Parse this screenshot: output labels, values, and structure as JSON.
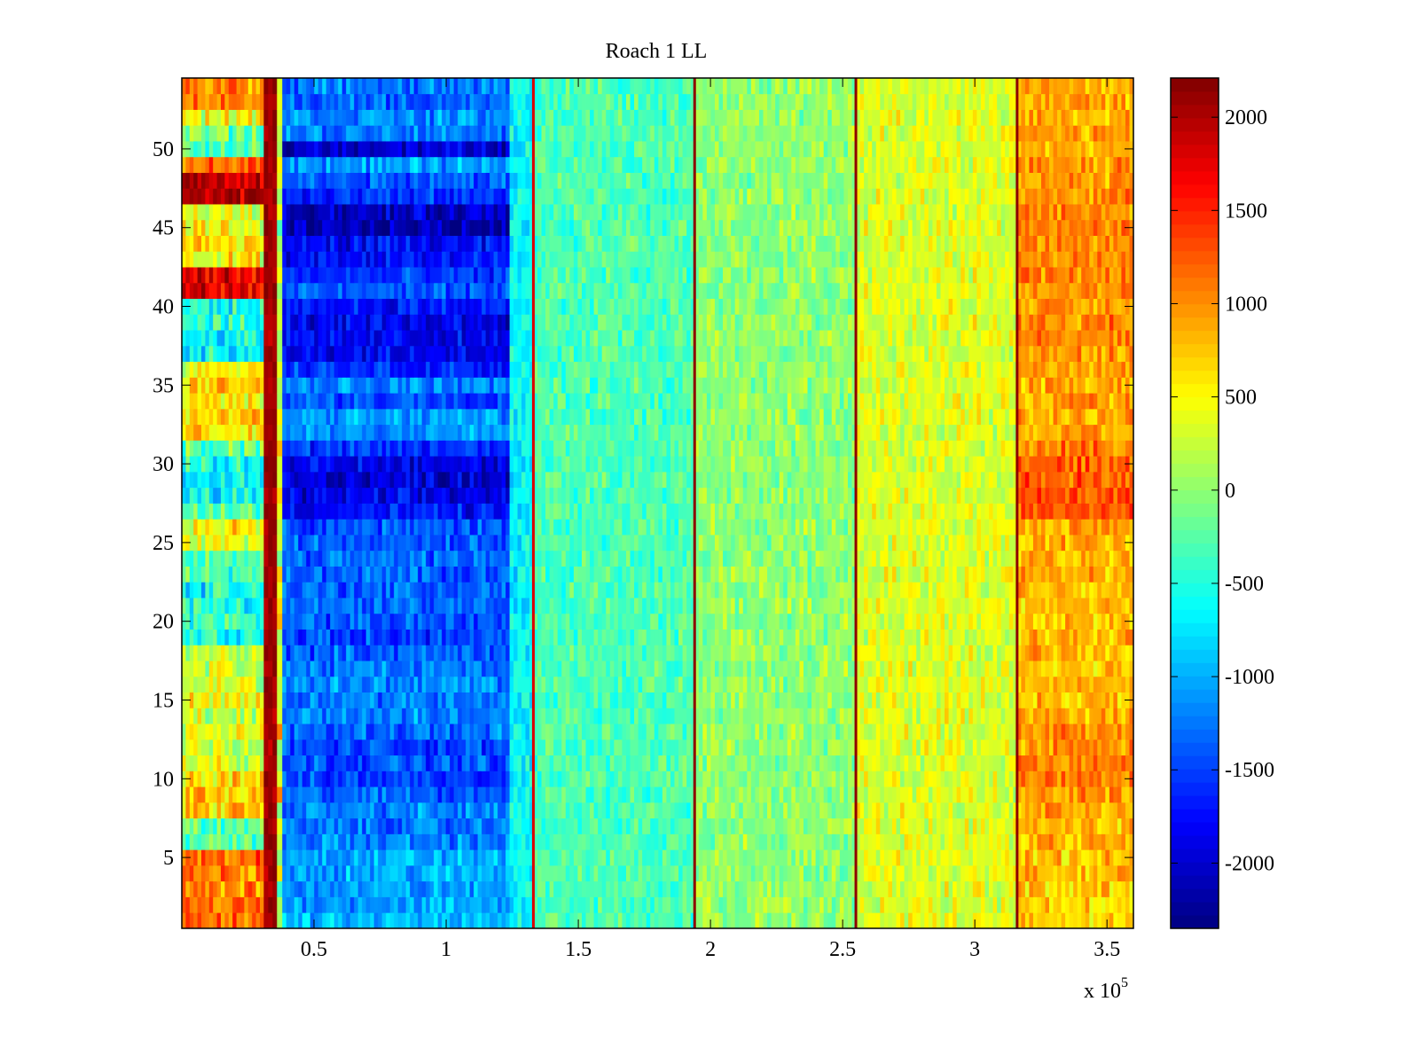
{
  "chart_data": {
    "type": "heatmap",
    "title": "Roach 1 LL",
    "xlabel": "",
    "ylabel": "",
    "x_multiplier_label": "x 10",
    "x_multiplier_exponent": "5",
    "xlim": [
      0,
      360000
    ],
    "ylim": [
      0.5,
      54.5
    ],
    "rows": 54,
    "xticks": [
      50000,
      100000,
      150000,
      200000,
      250000,
      300000,
      350000
    ],
    "xtick_labels": [
      "0.5",
      "1",
      "1.5",
      "2",
      "2.5",
      "3",
      "3.5"
    ],
    "yticks": [
      5,
      10,
      15,
      20,
      25,
      30,
      35,
      40,
      45,
      50
    ],
    "ytick_labels": [
      "5",
      "10",
      "15",
      "20",
      "25",
      "30",
      "35",
      "40",
      "45",
      "50"
    ],
    "colormap": "jet",
    "clim": [
      -2350,
      2210
    ],
    "colorbar": {
      "ticks": [
        2000,
        1500,
        1000,
        500,
        0,
        -500,
        -1000,
        -1500,
        -2000
      ],
      "tick_labels": [
        "2000",
        "1500",
        "1000",
        "500",
        "0",
        "-500",
        "-1000",
        "-1500",
        "-2000"
      ]
    },
    "bands": [
      {
        "x": [
          0,
          31000
        ],
        "mean": "left_rows",
        "noise": 450
      },
      {
        "x": [
          31000,
          36000
        ],
        "mean": 2050,
        "noise": 200
      },
      {
        "x": [
          36000,
          38000
        ],
        "mean": 300,
        "noise": 700
      },
      {
        "x": [
          38000,
          124000
        ],
        "mean": "blue_rows",
        "noise": 350
      },
      {
        "x": [
          124000,
          133000
        ],
        "mean": -650,
        "noise": 300
      },
      {
        "x": [
          133000,
          194000
        ],
        "mean": -300,
        "noise": 300
      },
      {
        "x": [
          194000,
          255000
        ],
        "mean": 0,
        "noise": 320
      },
      {
        "x": [
          255000,
          316000
        ],
        "mean": 350,
        "noise": 330
      },
      {
        "x": [
          316000,
          360000
        ],
        "mean": "right_rows",
        "noise": 330
      }
    ],
    "vertical_lines": [
      {
        "x": 133000,
        "value": 1800
      },
      {
        "x": 194000,
        "value": 2150
      },
      {
        "x": 255000,
        "value": 2150
      },
      {
        "x": 316000,
        "value": 2150
      }
    ],
    "left_rows": [
      1100,
      1200,
      1000,
      1100,
      1150,
      -300,
      -200,
      700,
      800,
      700,
      300,
      250,
      400,
      200,
      350,
      300,
      250,
      300,
      -450,
      -300,
      -500,
      -600,
      -300,
      -300,
      400,
      500,
      -300,
      -600,
      -700,
      -500,
      -200,
      600,
      700,
      500,
      650,
      550,
      -600,
      -650,
      -500,
      -500,
      1700,
      1750,
      500,
      600,
      450,
      350,
      2050,
      2000,
      1100,
      -250,
      -150,
      450,
      1000,
      1100
    ],
    "blue_rows": [
      -1000,
      -1050,
      -1100,
      -1000,
      -1000,
      -1200,
      -1300,
      -1200,
      -1350,
      -1500,
      -1400,
      -1500,
      -1300,
      -1200,
      -1200,
      -1150,
      -1250,
      -1350,
      -1500,
      -1400,
      -1300,
      -1350,
      -1350,
      -1300,
      -1350,
      -1400,
      -1750,
      -1900,
      -1950,
      -1850,
      -1600,
      -1100,
      -1100,
      -1400,
      -1150,
      -1600,
      -1800,
      -1850,
      -1850,
      -1700,
      -1400,
      -1600,
      -1750,
      -1800,
      -2150,
      -2050,
      -1600,
      -1400,
      -1100,
      -1950,
      -1200,
      -1150,
      -1350,
      -1250
    ],
    "right_rows": [
      650,
      700,
      750,
      800,
      750,
      850,
      800,
      900,
      950,
      1050,
      1050,
      1000,
      1000,
      850,
      800,
      800,
      750,
      800,
      800,
      750,
      800,
      850,
      850,
      800,
      850,
      900,
      1250,
      1300,
      1250,
      1200,
      1100,
      900,
      850,
      900,
      850,
      900,
      1000,
      1050,
      1050,
      1000,
      1000,
      1050,
      1000,
      1050,
      1100,
      1050,
      1000,
      950,
      950,
      900,
      900,
      850,
      900,
      900
    ]
  }
}
